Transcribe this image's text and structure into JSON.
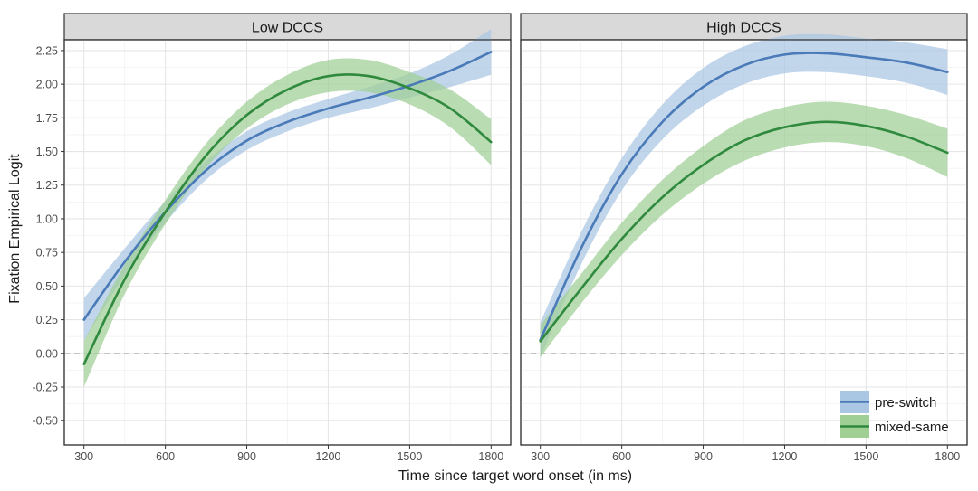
{
  "chart_data": {
    "type": "line",
    "xlabel": "Time since target word onset (in ms)",
    "ylabel": "Fixation Empirical Logit",
    "xlim": [
      300,
      1800
    ],
    "ylim": [
      -0.68,
      2.33
    ],
    "x_ticks": [
      300,
      600,
      900,
      1200,
      1500,
      1800
    ],
    "y_ticks": [
      -0.5,
      -0.25,
      0,
      0.25,
      0.5,
      0.75,
      1,
      1.25,
      1.5,
      1.75,
      2,
      2.25
    ],
    "y_tick_labels": [
      "-0.50",
      "-0.25",
      "0.00",
      "0.25",
      "0.50",
      "0.75",
      "1.00",
      "1.25",
      "1.50",
      "1.75",
      "2.00",
      "2.25"
    ],
    "reference_line": 0,
    "grid": true,
    "legend": {
      "position": "bottom-right",
      "entries": [
        {
          "name": "pre-switch",
          "color": "#4a7ab8",
          "fill": "#a9c6e3"
        },
        {
          "name": "mixed-same",
          "color": "#2f8a3e",
          "fill": "#9fcf95"
        }
      ]
    },
    "panels": [
      {
        "title": "Low DCCS",
        "series": [
          {
            "name": "pre-switch",
            "x": [
              300,
              450,
              600,
              750,
              900,
              1050,
              1200,
              1350,
              1500,
              1650,
              1800
            ],
            "values": [
              0.25,
              0.68,
              1.05,
              1.36,
              1.58,
              1.72,
              1.82,
              1.9,
              1.99,
              2.1,
              2.24
            ],
            "ci_half": [
              0.16,
              0.1,
              0.08,
              0.07,
              0.07,
              0.07,
              0.07,
              0.08,
              0.09,
              0.12,
              0.17
            ]
          },
          {
            "name": "mixed-same",
            "x": [
              300,
              450,
              600,
              750,
              900,
              1050,
              1200,
              1350,
              1500,
              1650,
              1800
            ],
            "values": [
              -0.08,
              0.55,
              1.05,
              1.47,
              1.77,
              1.96,
              2.06,
              2.06,
              1.97,
              1.82,
              1.57
            ],
            "ci_half": [
              0.17,
              0.11,
              0.09,
              0.09,
              0.1,
              0.11,
              0.12,
              0.12,
              0.12,
              0.14,
              0.17
            ]
          }
        ]
      },
      {
        "title": "High DCCS",
        "series": [
          {
            "name": "pre-switch",
            "x": [
              300,
              450,
              600,
              750,
              900,
              1050,
              1200,
              1350,
              1500,
              1650,
              1800
            ],
            "values": [
              0.1,
              0.78,
              1.33,
              1.72,
              1.98,
              2.14,
              2.22,
              2.23,
              2.2,
              2.16,
              2.09
            ],
            "ci_half": [
              0.13,
              0.12,
              0.12,
              0.13,
              0.14,
              0.14,
              0.14,
              0.14,
              0.14,
              0.15,
              0.17
            ]
          },
          {
            "name": "mixed-same",
            "x": [
              300,
              450,
              600,
              750,
              900,
              1050,
              1200,
              1350,
              1500,
              1650,
              1800
            ],
            "values": [
              0.09,
              0.48,
              0.85,
              1.16,
              1.4,
              1.58,
              1.68,
              1.72,
              1.69,
              1.61,
              1.49
            ],
            "ci_half": [
              0.12,
              0.11,
              0.12,
              0.13,
              0.14,
              0.15,
              0.15,
              0.15,
              0.15,
              0.16,
              0.18
            ]
          }
        ]
      }
    ]
  }
}
